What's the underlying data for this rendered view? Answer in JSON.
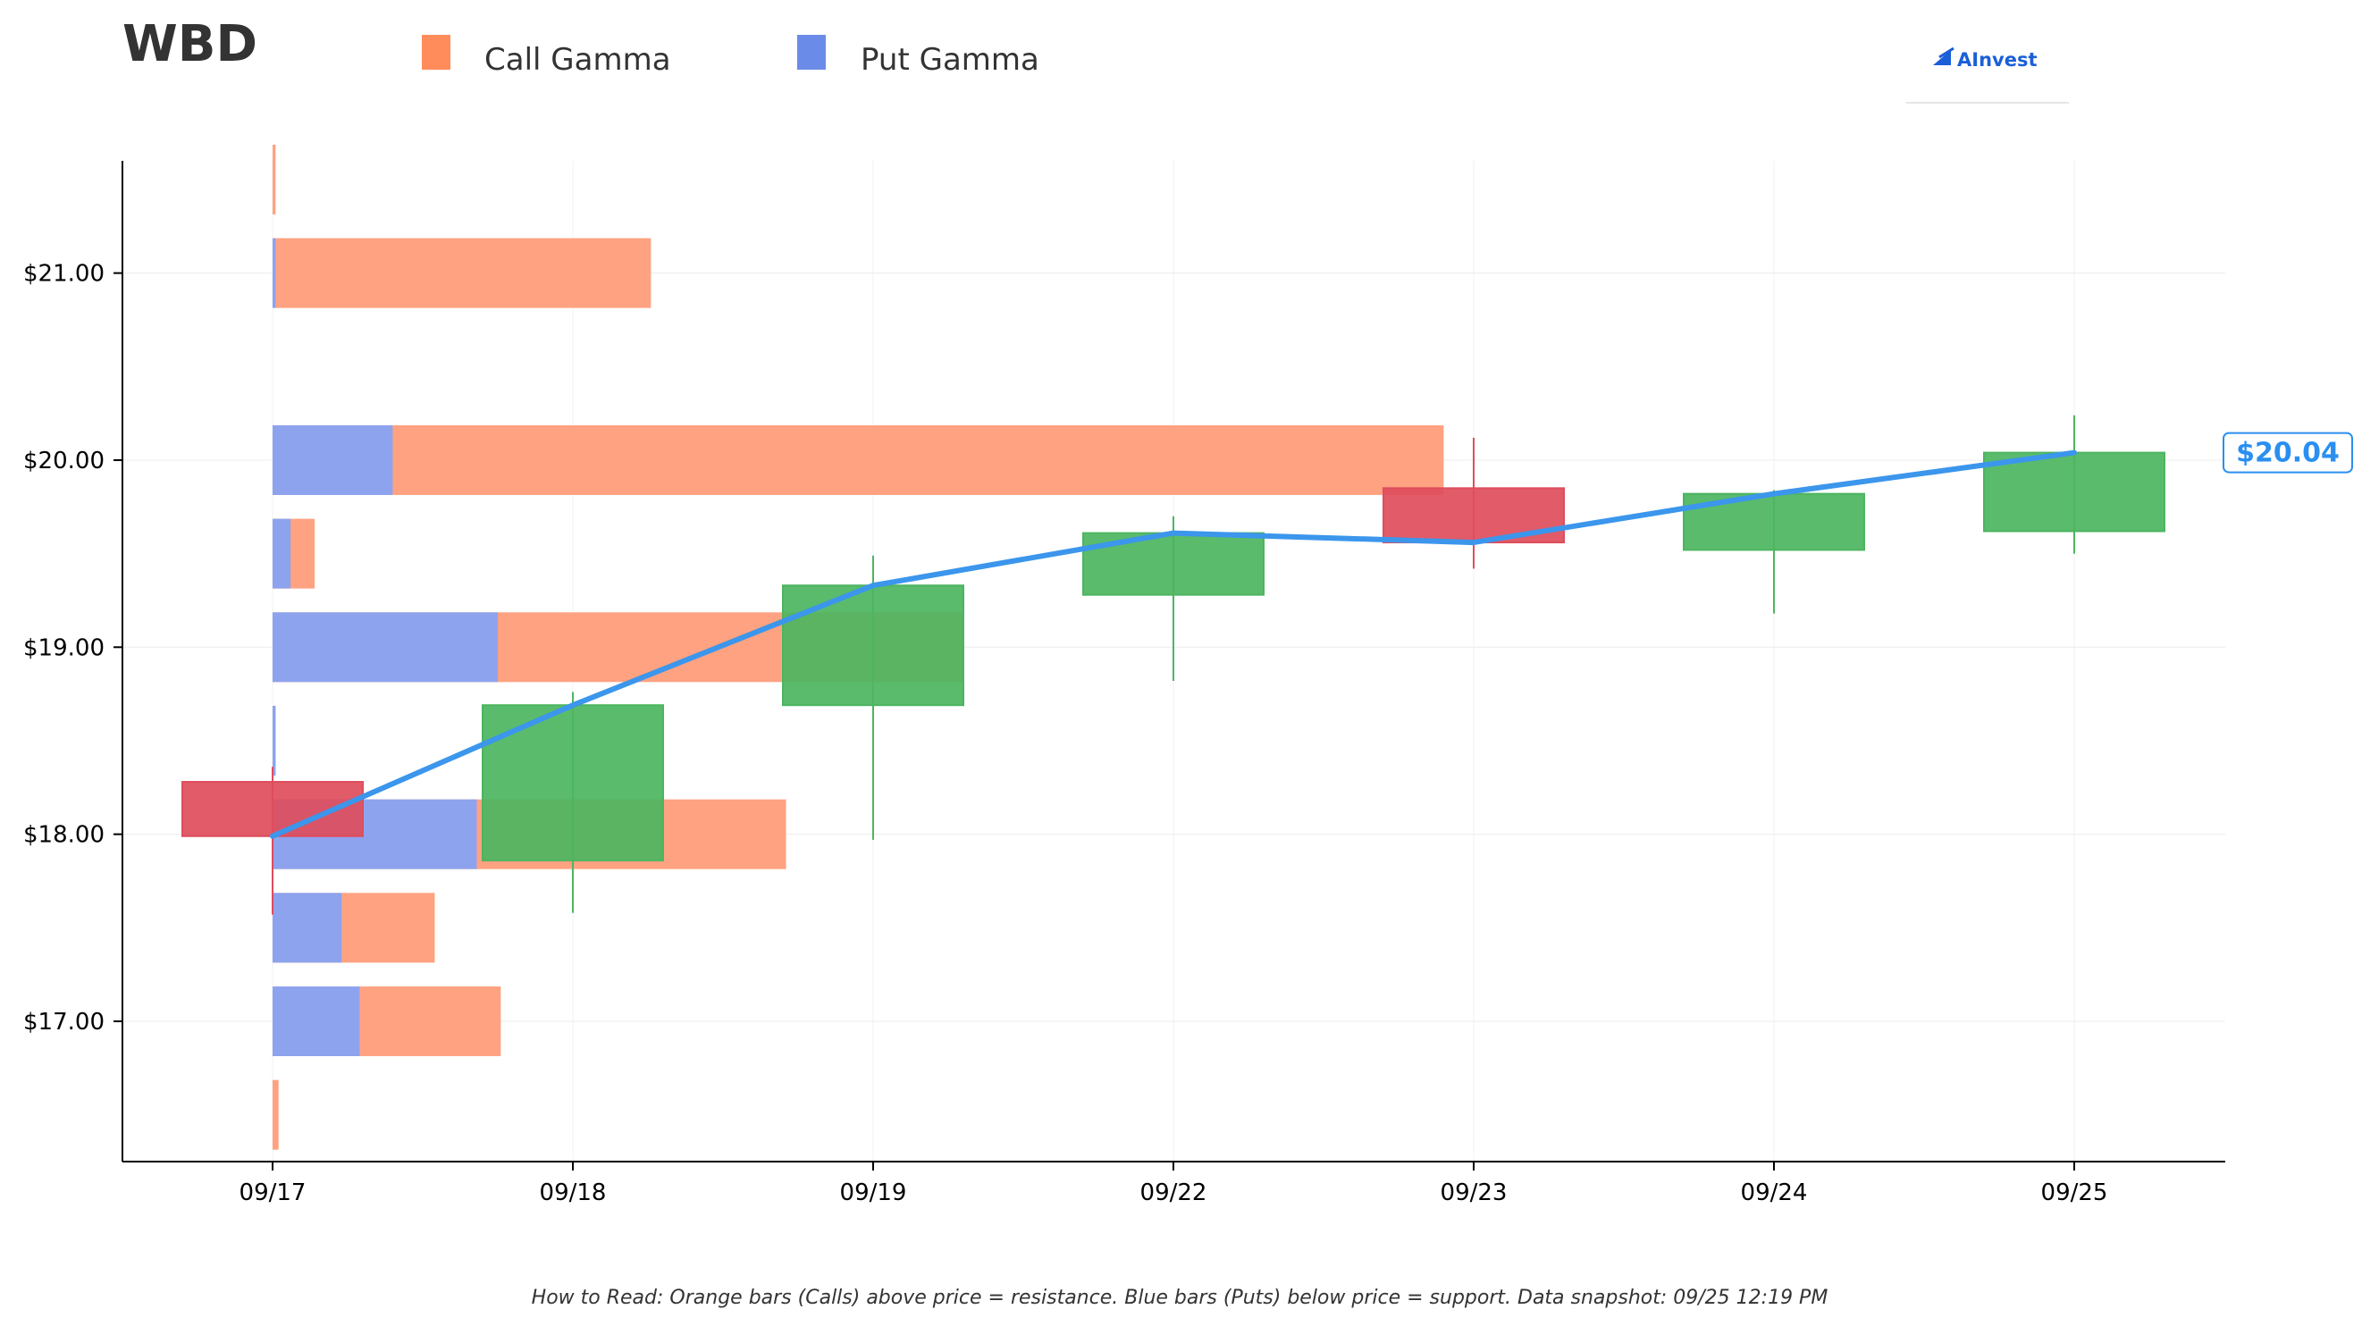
{
  "chart_data": {
    "type": "candlestick_with_gamma_bars",
    "title": "WBD",
    "legend": [
      {
        "name": "Call Gamma",
        "color": "#ff8c5a"
      },
      {
        "name": "Put Gamma",
        "color": "#6b8be8"
      }
    ],
    "brand": "AInvest",
    "colors": {
      "up": "#4cb560",
      "down": "#de4d5c",
      "price_line": "#3b96ec",
      "call": "#ffa281",
      "put": "#8ea3ee"
    },
    "x_categories": [
      "09/17",
      "09/18",
      "09/19",
      "09/22",
      "09/23",
      "09/24",
      "09/25"
    ],
    "y_ticks": [
      {
        "value": 17,
        "label": "$17.00"
      },
      {
        "value": 18,
        "label": "$18.00"
      },
      {
        "value": 19,
        "label": "$19.00"
      },
      {
        "value": 20,
        "label": "$20.00"
      },
      {
        "value": 21,
        "label": "$21.00"
      }
    ],
    "ylim": [
      16.25,
      21.6
    ],
    "candles": [
      {
        "date": "09/17",
        "open": 18.28,
        "high": 18.36,
        "low": 17.57,
        "close": 17.99
      },
      {
        "date": "09/18",
        "open": 17.86,
        "high": 18.76,
        "low": 17.58,
        "close": 18.69
      },
      {
        "date": "09/19",
        "open": 18.69,
        "high": 19.49,
        "low": 17.97,
        "close": 19.33
      },
      {
        "date": "09/22",
        "open": 19.28,
        "high": 19.7,
        "low": 18.82,
        "close": 19.61
      },
      {
        "date": "09/23",
        "open": 19.85,
        "high": 20.12,
        "low": 19.42,
        "close": 19.56
      },
      {
        "date": "09/24",
        "open": 19.52,
        "high": 19.84,
        "low": 19.18,
        "close": 19.82
      },
      {
        "date": "09/25",
        "open": 19.62,
        "high": 20.24,
        "low": 19.5,
        "close": 20.04
      }
    ],
    "price_line": [
      17.99,
      18.69,
      19.33,
      19.61,
      19.56,
      19.82,
      20.04
    ],
    "last_price_label": "$20.04",
    "gamma_strikes": [
      {
        "strike": 16.5,
        "call": 0.02,
        "put": 0.0
      },
      {
        "strike": 17.0,
        "call": 0.47,
        "put": 0.29
      },
      {
        "strike": 17.5,
        "call": 0.31,
        "put": 0.23
      },
      {
        "strike": 18.0,
        "call": 1.03,
        "put": 0.68
      },
      {
        "strike": 18.5,
        "call": 0.0,
        "put": 0.01
      },
      {
        "strike": 19.0,
        "call": 1.55,
        "put": 0.75
      },
      {
        "strike": 19.5,
        "call": 0.08,
        "put": 0.06
      },
      {
        "strike": 20.0,
        "call": 3.5,
        "put": 0.4
      },
      {
        "strike": 21.0,
        "call": 1.25,
        "put": 0.01
      },
      {
        "strike": 21.5,
        "call": 0.01,
        "put": 0.0
      }
    ],
    "footer": "How to Read: Orange bars (Calls) above price = resistance. Blue bars (Puts) below price = support. Data snapshot: 09/25 12:19 PM"
  }
}
